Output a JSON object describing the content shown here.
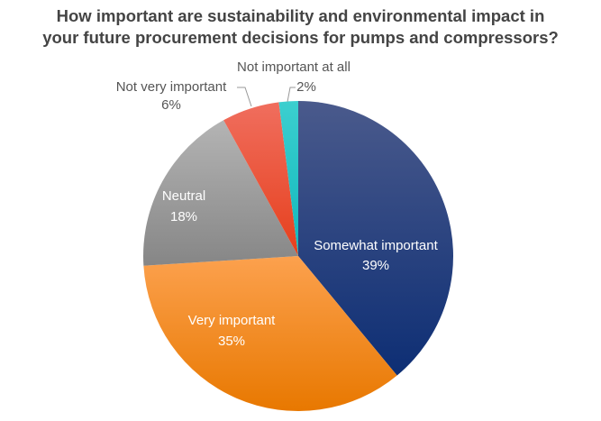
{
  "chart_data": {
    "type": "pie",
    "title_lines": [
      "How important are sustainability and environmental impact in",
      "your future procurement decisions for pumps and compressors?"
    ],
    "categories": [
      "Somewhat important",
      "Very important",
      "Neutral",
      "Not very important",
      "Not important at all"
    ],
    "values": [
      39,
      35,
      18,
      6,
      2
    ],
    "value_labels": [
      "39%",
      "35%",
      "18%",
      "6%",
      "2%"
    ],
    "colors": [
      [
        "#4a5a8c",
        "#0d2e74"
      ],
      [
        "#fca14e",
        "#e87800"
      ],
      [
        "#b4b4b4",
        "#868686"
      ],
      [
        "#f06e5e",
        "#e63f1c"
      ],
      [
        "#3ccfcf",
        "#10b8bc"
      ]
    ],
    "start": "top",
    "direction": "clockwise"
  }
}
